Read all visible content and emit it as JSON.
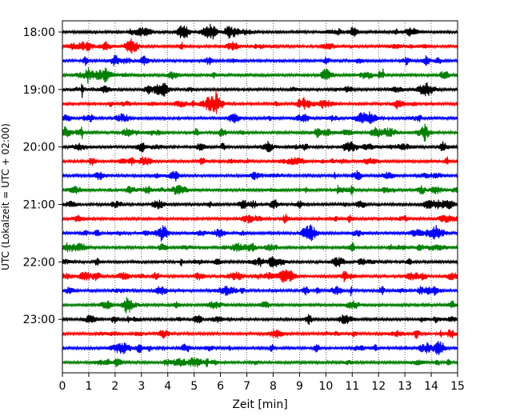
{
  "chart_data": {
    "type": "line",
    "title": "",
    "xlabel": "Zeit  [min]",
    "ylabel": "UTC (Lokalzeit = UTC + 02:00)",
    "xlim": [
      0,
      15
    ],
    "x_ticks": [
      "0",
      "1",
      "2",
      "3",
      "4",
      "5",
      "6",
      "7",
      "8",
      "9",
      "10",
      "11",
      "12",
      "13",
      "14",
      "15"
    ],
    "y_tick_labels": [
      "18:00",
      "19:00",
      "20:00",
      "21:00",
      "22:00",
      "23:00"
    ],
    "grid": "vertical dotted lines at each minute",
    "trace_colors": [
      "#000000",
      "#ff0000",
      "#0000ff",
      "#008000"
    ],
    "trace_start_times": [
      "18:00",
      "18:15",
      "18:30",
      "18:45",
      "19:00",
      "19:15",
      "19:30",
      "19:45",
      "20:00",
      "20:15",
      "20:30",
      "20:45",
      "21:00",
      "21:15",
      "21:30",
      "21:45",
      "22:00",
      "22:15",
      "22:30",
      "22:45",
      "23:00",
      "23:15",
      "23:30",
      "23:45"
    ],
    "trace_minutes_each": 15
  }
}
